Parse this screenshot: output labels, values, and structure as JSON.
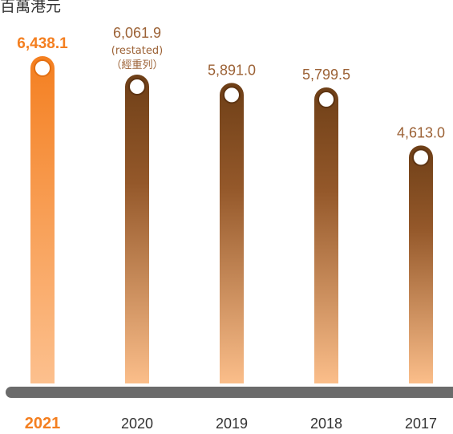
{
  "chart_data": {
    "type": "bar",
    "unit_label": "百萬港元",
    "categories": [
      "2021",
      "2020",
      "2019",
      "2018",
      "2017"
    ],
    "values": [
      6438.1,
      6061.9,
      5891.0,
      5799.5,
      4613.0
    ],
    "value_labels": [
      "6,438.1",
      "6,061.9",
      "5,891.0",
      "5,799.5",
      "4,613.0"
    ],
    "notes": {
      "2020": [
        "(restated)",
        "（經重列）"
      ]
    },
    "highlight_category": "2021",
    "colors": {
      "highlight_top": "#F47F20",
      "highlight_bottom": "#FCC08E",
      "bar_top": "#6E3F17",
      "bar_bottom": "#FBBE8A",
      "highlight_label": "#F47F20",
      "value_label": "#9C6236",
      "axis_bar": "#6B6B6B",
      "category_label": "#333333"
    },
    "ylim": [
      0,
      6900
    ]
  }
}
